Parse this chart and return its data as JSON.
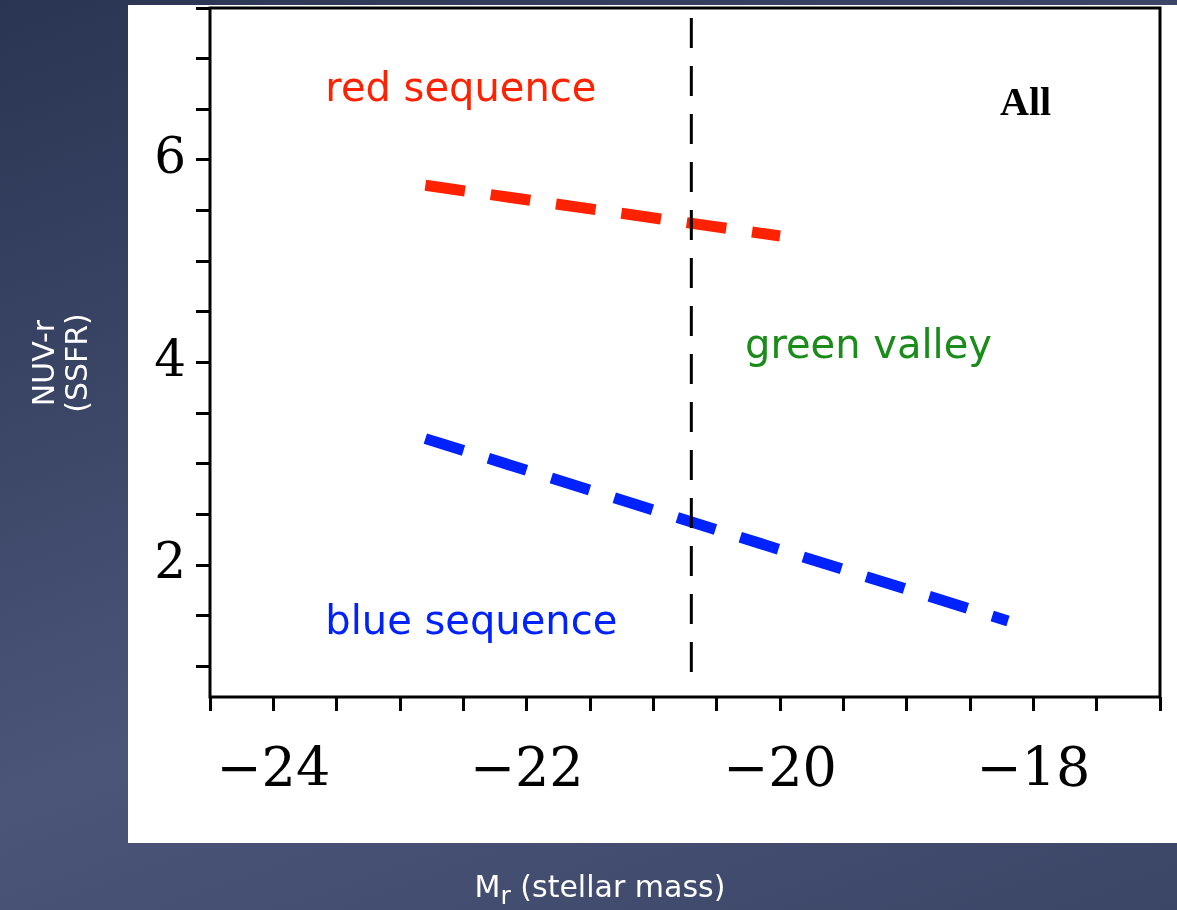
{
  "chart_data": {
    "type": "line",
    "xlabel": "M$_{r}$ (stellar mass)",
    "ylabel": "NUV-r\n(SSFR)",
    "xlim": [
      -24.5,
      -17
    ],
    "ylim": [
      0.7,
      7.5
    ],
    "xticks": [
      {
        "value": -24.5,
        "label": null
      },
      -24,
      {
        "value": -23.5,
        "label": null
      },
      {
        "value": -23,
        "label": null
      },
      {
        "value": -22.5,
        "label": null
      },
      -22,
      {
        "value": -21.5,
        "label": null
      },
      {
        "value": -21,
        "label": null
      },
      {
        "value": -20.5,
        "label": null
      },
      -20,
      {
        "value": -19.5,
        "label": null
      },
      {
        "value": -19,
        "label": null
      },
      {
        "value": -18.5,
        "label": null
      },
      -18,
      {
        "value": -17.5,
        "label": null
      },
      {
        "value": -17,
        "label": null
      }
    ],
    "yticks": [
      {
        "value": 1,
        "label": null
      },
      {
        "value": 1.5,
        "label": null
      },
      2,
      {
        "value": 2.5,
        "label": null
      },
      {
        "value": 3,
        "label": null
      },
      {
        "value": 3.5,
        "label": null
      },
      4,
      {
        "value": 4.5,
        "label": null
      },
      {
        "value": 5,
        "label": null
      },
      {
        "value": 5.5,
        "label": null
      },
      6,
      {
        "value": 6.5,
        "label": null
      },
      {
        "value": 7,
        "label": null
      },
      {
        "value": 7.5,
        "label": null
      }
    ],
    "series": [
      {
        "name": "red sequence",
        "color": "#ff2200",
        "x": [
          -22.8,
          -20.0
        ],
        "values": [
          5.75,
          5.25
        ]
      },
      {
        "name": "blue sequence",
        "color": "#0022ff",
        "x": [
          -22.8,
          -18.2
        ],
        "values": [
          3.25,
          1.45
        ]
      }
    ],
    "line_style": "dashed",
    "marker": "none",
    "legend": false,
    "ref_lines": [
      {
        "axis": "x",
        "value": -20.7,
        "color": "#000000",
        "line_style": "dashed"
      }
    ],
    "annotations": [
      "green valley",
      "All"
    ]
  }
}
